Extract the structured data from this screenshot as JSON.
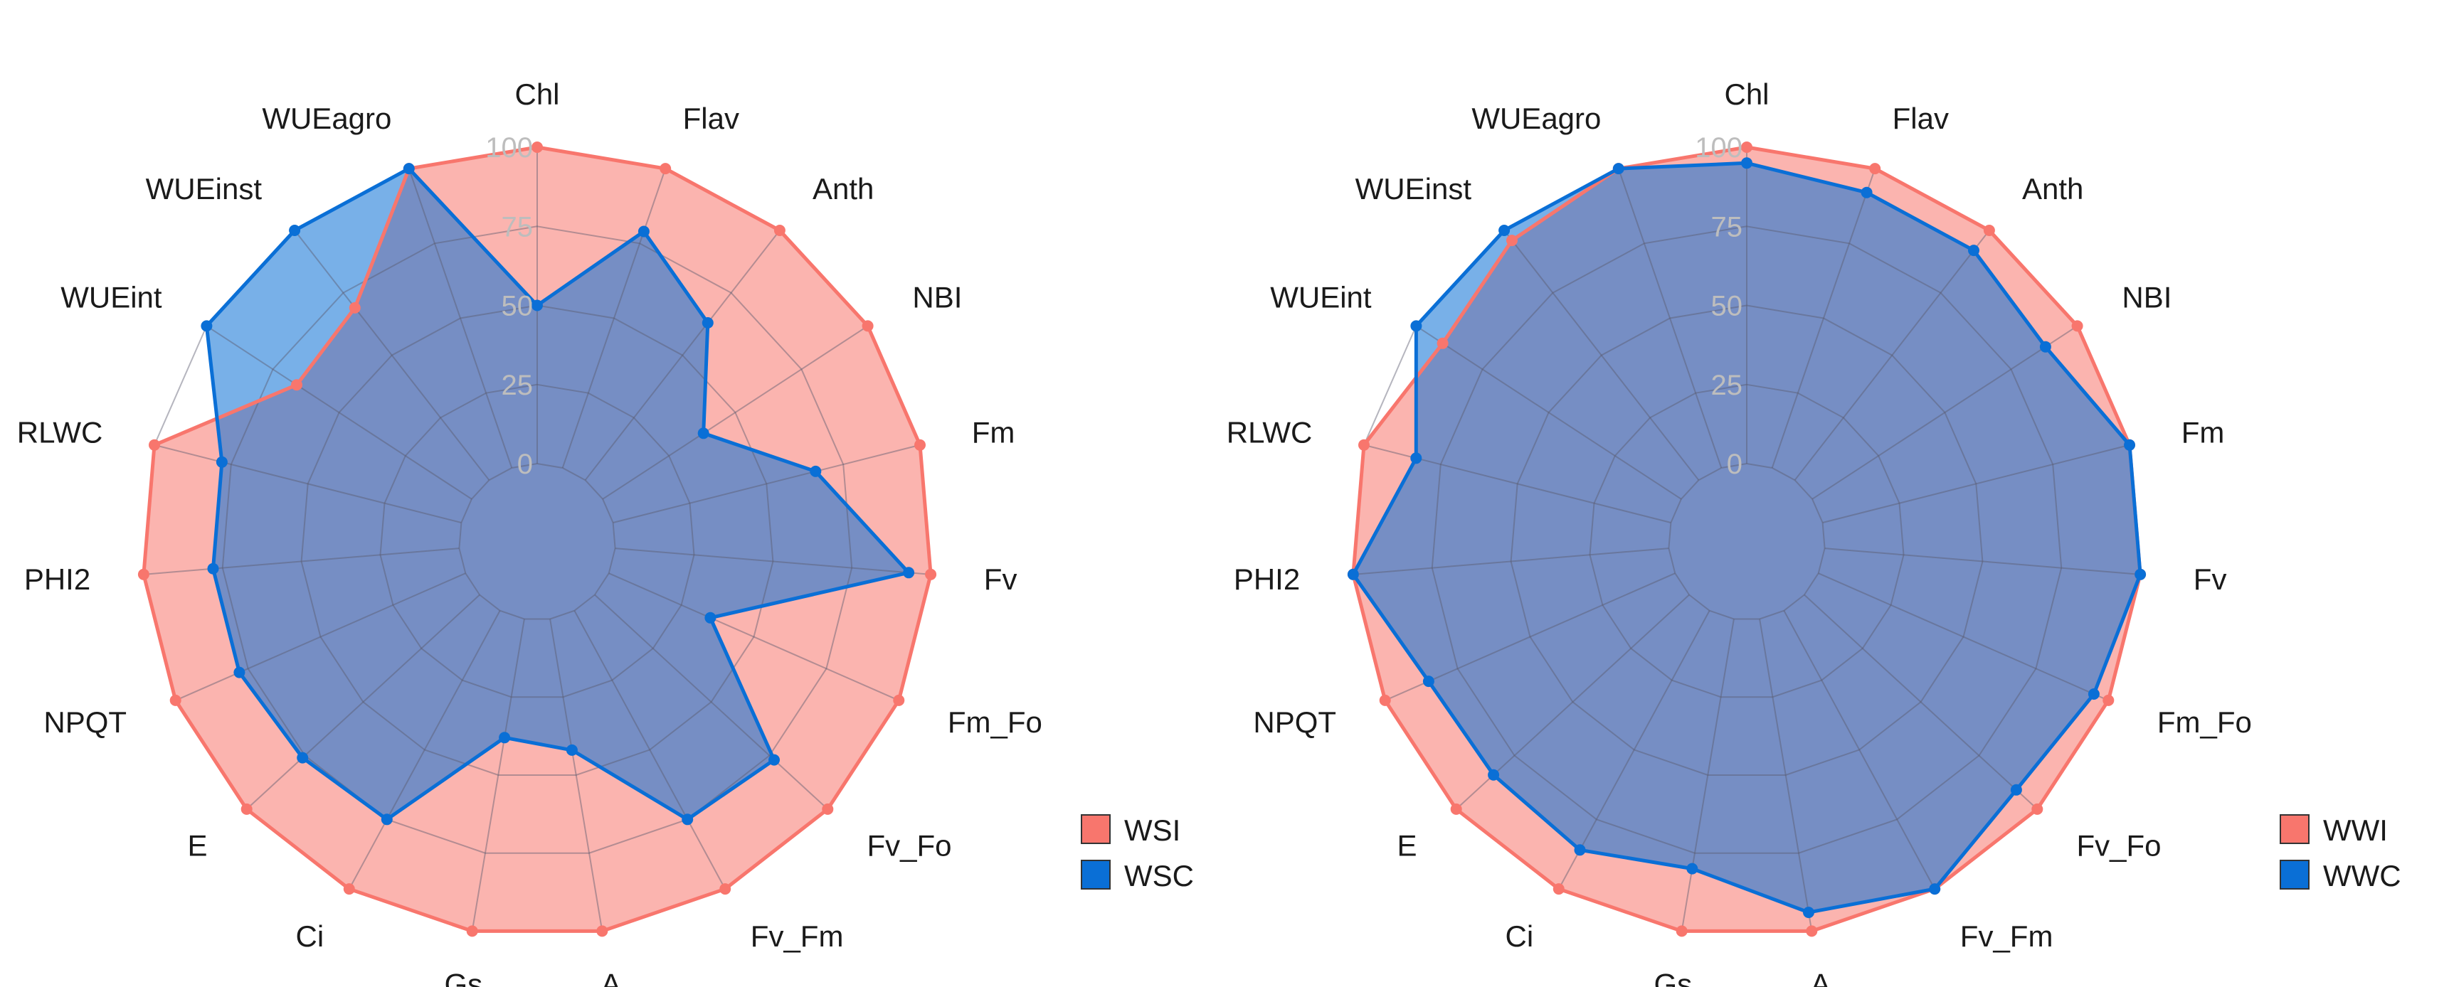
{
  "chart_data": [
    {
      "type": "radar",
      "title": "",
      "axes": [
        "Chl",
        "Flav",
        "Anth",
        "NBI",
        "Fm",
        "Fv",
        "Fm_Fo",
        "Fv_Fo",
        "Fv_Fm",
        "A",
        "Gs",
        "Ci",
        "E",
        "NPQT",
        "PHI2",
        "RLWC",
        "WUEint",
        "WUEinst",
        "WUEagro"
      ],
      "radial_ticks": [
        "0",
        "25",
        "50",
        "75",
        "100"
      ],
      "rlim": [
        0,
        100
      ],
      "grid": true,
      "legend": "right",
      "series": [
        {
          "name": "WSI",
          "color": "#F8766D",
          "values": [
            100,
            100,
            100,
            100,
            100,
            100,
            100,
            100,
            100,
            100,
            100,
            100,
            100,
            100,
            100,
            100,
            66,
            69,
            100
          ]
        },
        {
          "name": "WSC",
          "color": "#0A6FD6",
          "values": [
            50,
            79,
            63,
            38,
            66,
            93,
            35,
            77,
            75,
            42,
            38,
            75,
            76,
            78,
            78,
            78,
            100,
            100,
            100
          ]
        }
      ]
    },
    {
      "type": "radar",
      "title": "",
      "axes": [
        "Chl",
        "Flav",
        "Anth",
        "NBI",
        "Fm",
        "Fv",
        "Fm_Fo",
        "Fv_Fo",
        "Fv_Fm",
        "A",
        "Gs",
        "Ci",
        "E",
        "NPQT",
        "PHI2",
        "RLWC",
        "WUEint",
        "WUEinst",
        "WUEagro"
      ],
      "radial_ticks": [
        "0",
        "25",
        "50",
        "75",
        "100"
      ],
      "rlim": [
        0,
        100
      ],
      "grid": true,
      "legend": "right",
      "series": [
        {
          "name": "WWI",
          "color": "#F8766D",
          "values": [
            100,
            100,
            100,
            100,
            100,
            100,
            100,
            100,
            100,
            100,
            100,
            100,
            100,
            100,
            100,
            100,
            90,
            96,
            100
          ]
        },
        {
          "name": "WWC",
          "color": "#0A6FD6",
          "values": [
            95,
            92,
            92,
            88,
            100,
            100,
            95,
            91,
            100,
            94,
            80,
            86,
            84,
            85,
            100,
            83,
            100,
            100,
            100
          ]
        }
      ]
    }
  ]
}
